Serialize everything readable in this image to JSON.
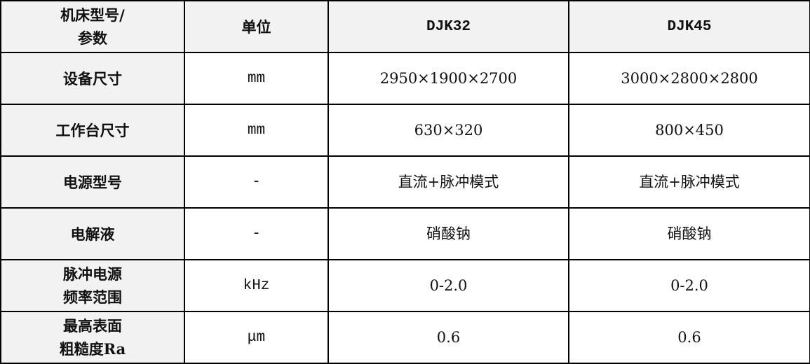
{
  "table": {
    "headers": [
      "机床型号/\n参数",
      "单位",
      "DJK32",
      "DJK45"
    ],
    "rows": [
      {
        "param": "设备尺寸",
        "unit": "mm",
        "djk32": "2950×1900×2700",
        "djk45": "3000×2800×2800"
      },
      {
        "param": "工作台尺寸",
        "unit": "mm",
        "djk32": "630×320",
        "djk45": "800×450"
      },
      {
        "param": "电源型号",
        "unit": "-",
        "djk32": "直流+脉冲模式",
        "djk45": "直流+脉冲模式"
      },
      {
        "param": "电解液",
        "unit": "-",
        "djk32": "硝酸钠",
        "djk45": "硝酸钠"
      },
      {
        "param": "脉冲电源\n频率范围",
        "unit": "kHz",
        "djk32": "0-2.0",
        "djk45": "0-2.0"
      },
      {
        "param": "最高表面\n粗糙度Ra",
        "unit": "μm",
        "djk32": "0.6",
        "djk45": "0.6"
      }
    ]
  }
}
